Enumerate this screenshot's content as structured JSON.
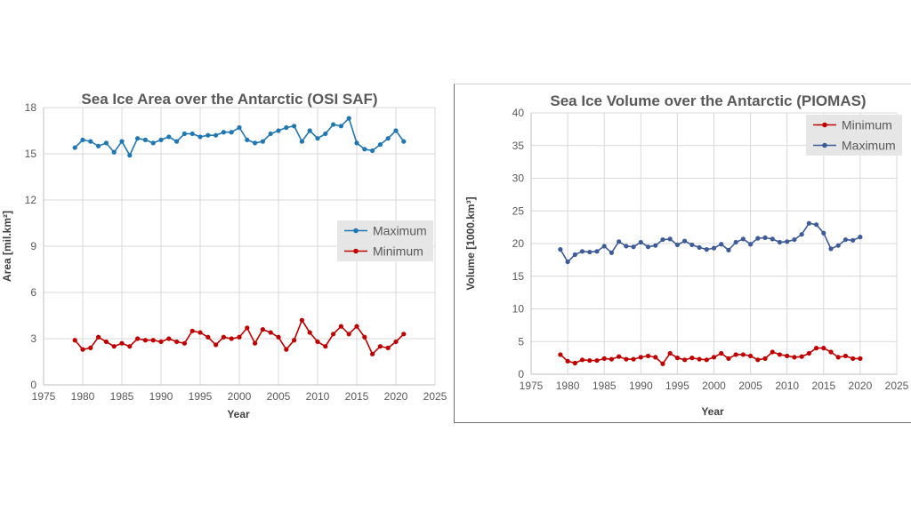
{
  "chart_data": [
    {
      "type": "line",
      "title": "Sea Ice Area over the Antarctic (OSI SAF)",
      "xlabel": "Year",
      "ylabel": "Area [mil.km²]",
      "xlim": [
        1975,
        2025
      ],
      "ylim": [
        0,
        18
      ],
      "xticks": [
        1975,
        1980,
        1985,
        1990,
        1995,
        2000,
        2005,
        2010,
        2015,
        2020,
        2025
      ],
      "yticks": [
        0,
        3,
        6,
        9,
        12,
        15,
        18
      ],
      "legend_order": [
        "Maximum",
        "Minimum"
      ],
      "legend_position": "center-right",
      "series": [
        {
          "name": "Maximum",
          "color": "#1f77b4",
          "x": [
            1979,
            1980,
            1981,
            1982,
            1983,
            1984,
            1985,
            1986,
            1987,
            1988,
            1989,
            1990,
            1991,
            1992,
            1993,
            1994,
            1995,
            1996,
            1997,
            1998,
            1999,
            2000,
            2001,
            2002,
            2003,
            2004,
            2005,
            2006,
            2007,
            2008,
            2009,
            2010,
            2011,
            2012,
            2013,
            2014,
            2015,
            2016,
            2017,
            2018,
            2019,
            2020,
            2021
          ],
          "y": [
            15.4,
            15.9,
            15.8,
            15.5,
            15.7,
            15.1,
            15.8,
            14.9,
            16.0,
            15.9,
            15.7,
            15.9,
            16.1,
            15.8,
            16.3,
            16.3,
            16.1,
            16.2,
            16.2,
            16.4,
            16.4,
            16.7,
            15.9,
            15.7,
            15.8,
            16.3,
            16.5,
            16.7,
            16.8,
            15.8,
            16.5,
            16.0,
            16.3,
            16.9,
            16.8,
            17.3,
            15.7,
            15.3,
            15.2,
            15.6,
            16.0,
            16.5,
            15.8
          ]
        },
        {
          "name": "Minimum",
          "color": "#c00000",
          "x": [
            1979,
            1980,
            1981,
            1982,
            1983,
            1984,
            1985,
            1986,
            1987,
            1988,
            1989,
            1990,
            1991,
            1992,
            1993,
            1994,
            1995,
            1996,
            1997,
            1998,
            1999,
            2000,
            2001,
            2002,
            2003,
            2004,
            2005,
            2006,
            2007,
            2008,
            2009,
            2010,
            2011,
            2012,
            2013,
            2014,
            2015,
            2016,
            2017,
            2018,
            2019,
            2020,
            2021
          ],
          "y": [
            2.9,
            2.3,
            2.4,
            3.1,
            2.8,
            2.5,
            2.7,
            2.5,
            3.0,
            2.9,
            2.9,
            2.8,
            3.0,
            2.8,
            2.7,
            3.5,
            3.4,
            3.1,
            2.6,
            3.1,
            3.0,
            3.1,
            3.7,
            2.7,
            3.6,
            3.4,
            3.1,
            2.3,
            2.9,
            4.2,
            3.4,
            2.8,
            2.5,
            3.3,
            3.8,
            3.3,
            3.8,
            3.1,
            2.0,
            2.5,
            2.4,
            2.8,
            3.3
          ]
        }
      ]
    },
    {
      "type": "line",
      "title": "Sea Ice Volume over the Antarctic (PIOMAS)",
      "xlabel": "Year",
      "ylabel": "Volume  [1000.km³]",
      "xlim": [
        1975,
        2025
      ],
      "ylim": [
        0,
        40
      ],
      "xticks": [
        1975,
        1980,
        1985,
        1990,
        1995,
        2000,
        2005,
        2010,
        2015,
        2020,
        2025
      ],
      "yticks": [
        0,
        5,
        10,
        15,
        20,
        25,
        30,
        35,
        40
      ],
      "legend_order": [
        "Minimum",
        "Maximum"
      ],
      "legend_position": "top-right",
      "series": [
        {
          "name": "Minimum",
          "color": "#c00000",
          "x": [
            1979,
            1980,
            1981,
            1982,
            1983,
            1984,
            1985,
            1986,
            1987,
            1988,
            1989,
            1990,
            1991,
            1992,
            1993,
            1994,
            1995,
            1996,
            1997,
            1998,
            1999,
            2000,
            2001,
            2002,
            2003,
            2004,
            2005,
            2006,
            2007,
            2008,
            2009,
            2010,
            2011,
            2012,
            2013,
            2014,
            2015,
            2016,
            2017,
            2018,
            2019,
            2020
          ],
          "y": [
            3.0,
            2.0,
            1.7,
            2.2,
            2.1,
            2.1,
            2.4,
            2.3,
            2.7,
            2.3,
            2.3,
            2.6,
            2.8,
            2.6,
            1.6,
            3.2,
            2.5,
            2.2,
            2.5,
            2.3,
            2.2,
            2.6,
            3.2,
            2.4,
            3.0,
            3.0,
            2.8,
            2.2,
            2.4,
            3.4,
            3.0,
            2.8,
            2.6,
            2.7,
            3.2,
            4.0,
            4.0,
            3.4,
            2.6,
            2.8,
            2.4,
            2.4
          ]
        },
        {
          "name": "Maximum",
          "color": "#3d5a99",
          "x": [
            1979,
            1980,
            1981,
            1982,
            1983,
            1984,
            1985,
            1986,
            1987,
            1988,
            1989,
            1990,
            1991,
            1992,
            1993,
            1994,
            1995,
            1996,
            1997,
            1998,
            1999,
            2000,
            2001,
            2002,
            2003,
            2004,
            2005,
            2006,
            2007,
            2008,
            2009,
            2010,
            2011,
            2012,
            2013,
            2014,
            2015,
            2016,
            2017,
            2018,
            2019,
            2020
          ],
          "y": [
            19.1,
            17.2,
            18.3,
            18.8,
            18.7,
            18.8,
            19.6,
            18.6,
            20.3,
            19.6,
            19.5,
            20.2,
            19.5,
            19.7,
            20.6,
            20.7,
            19.8,
            20.4,
            19.8,
            19.4,
            19.1,
            19.3,
            19.9,
            19.0,
            20.2,
            20.7,
            19.9,
            20.8,
            20.9,
            20.7,
            20.2,
            20.3,
            20.6,
            21.4,
            23.1,
            22.9,
            21.6,
            19.2,
            19.7,
            20.6,
            20.5,
            21.0
          ]
        }
      ]
    }
  ]
}
